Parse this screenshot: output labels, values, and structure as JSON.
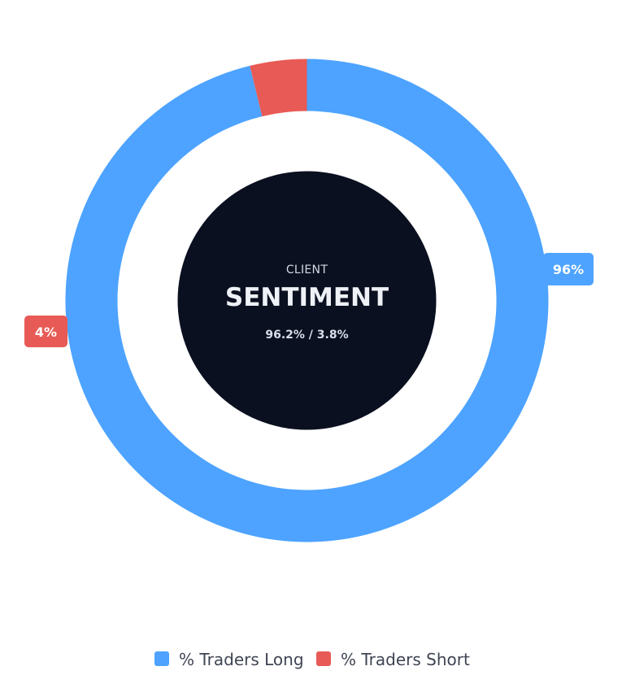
{
  "chart_data": {
    "type": "pie",
    "categories": [
      "% Traders Long",
      "% Traders Short"
    ],
    "values": [
      96.2,
      3.8
    ],
    "data_labels": [
      "96%",
      "4%"
    ],
    "colors": [
      "#4da3ff",
      "#e85a55"
    ],
    "center": {
      "kicker": "CLIENT",
      "title": "SENTIMENT",
      "summary": "96.2% / 3.8%",
      "background_color": "#0b1020"
    },
    "legend": {
      "placement": "bottom",
      "items": [
        "% Traders Long",
        "% Traders Short"
      ]
    }
  }
}
